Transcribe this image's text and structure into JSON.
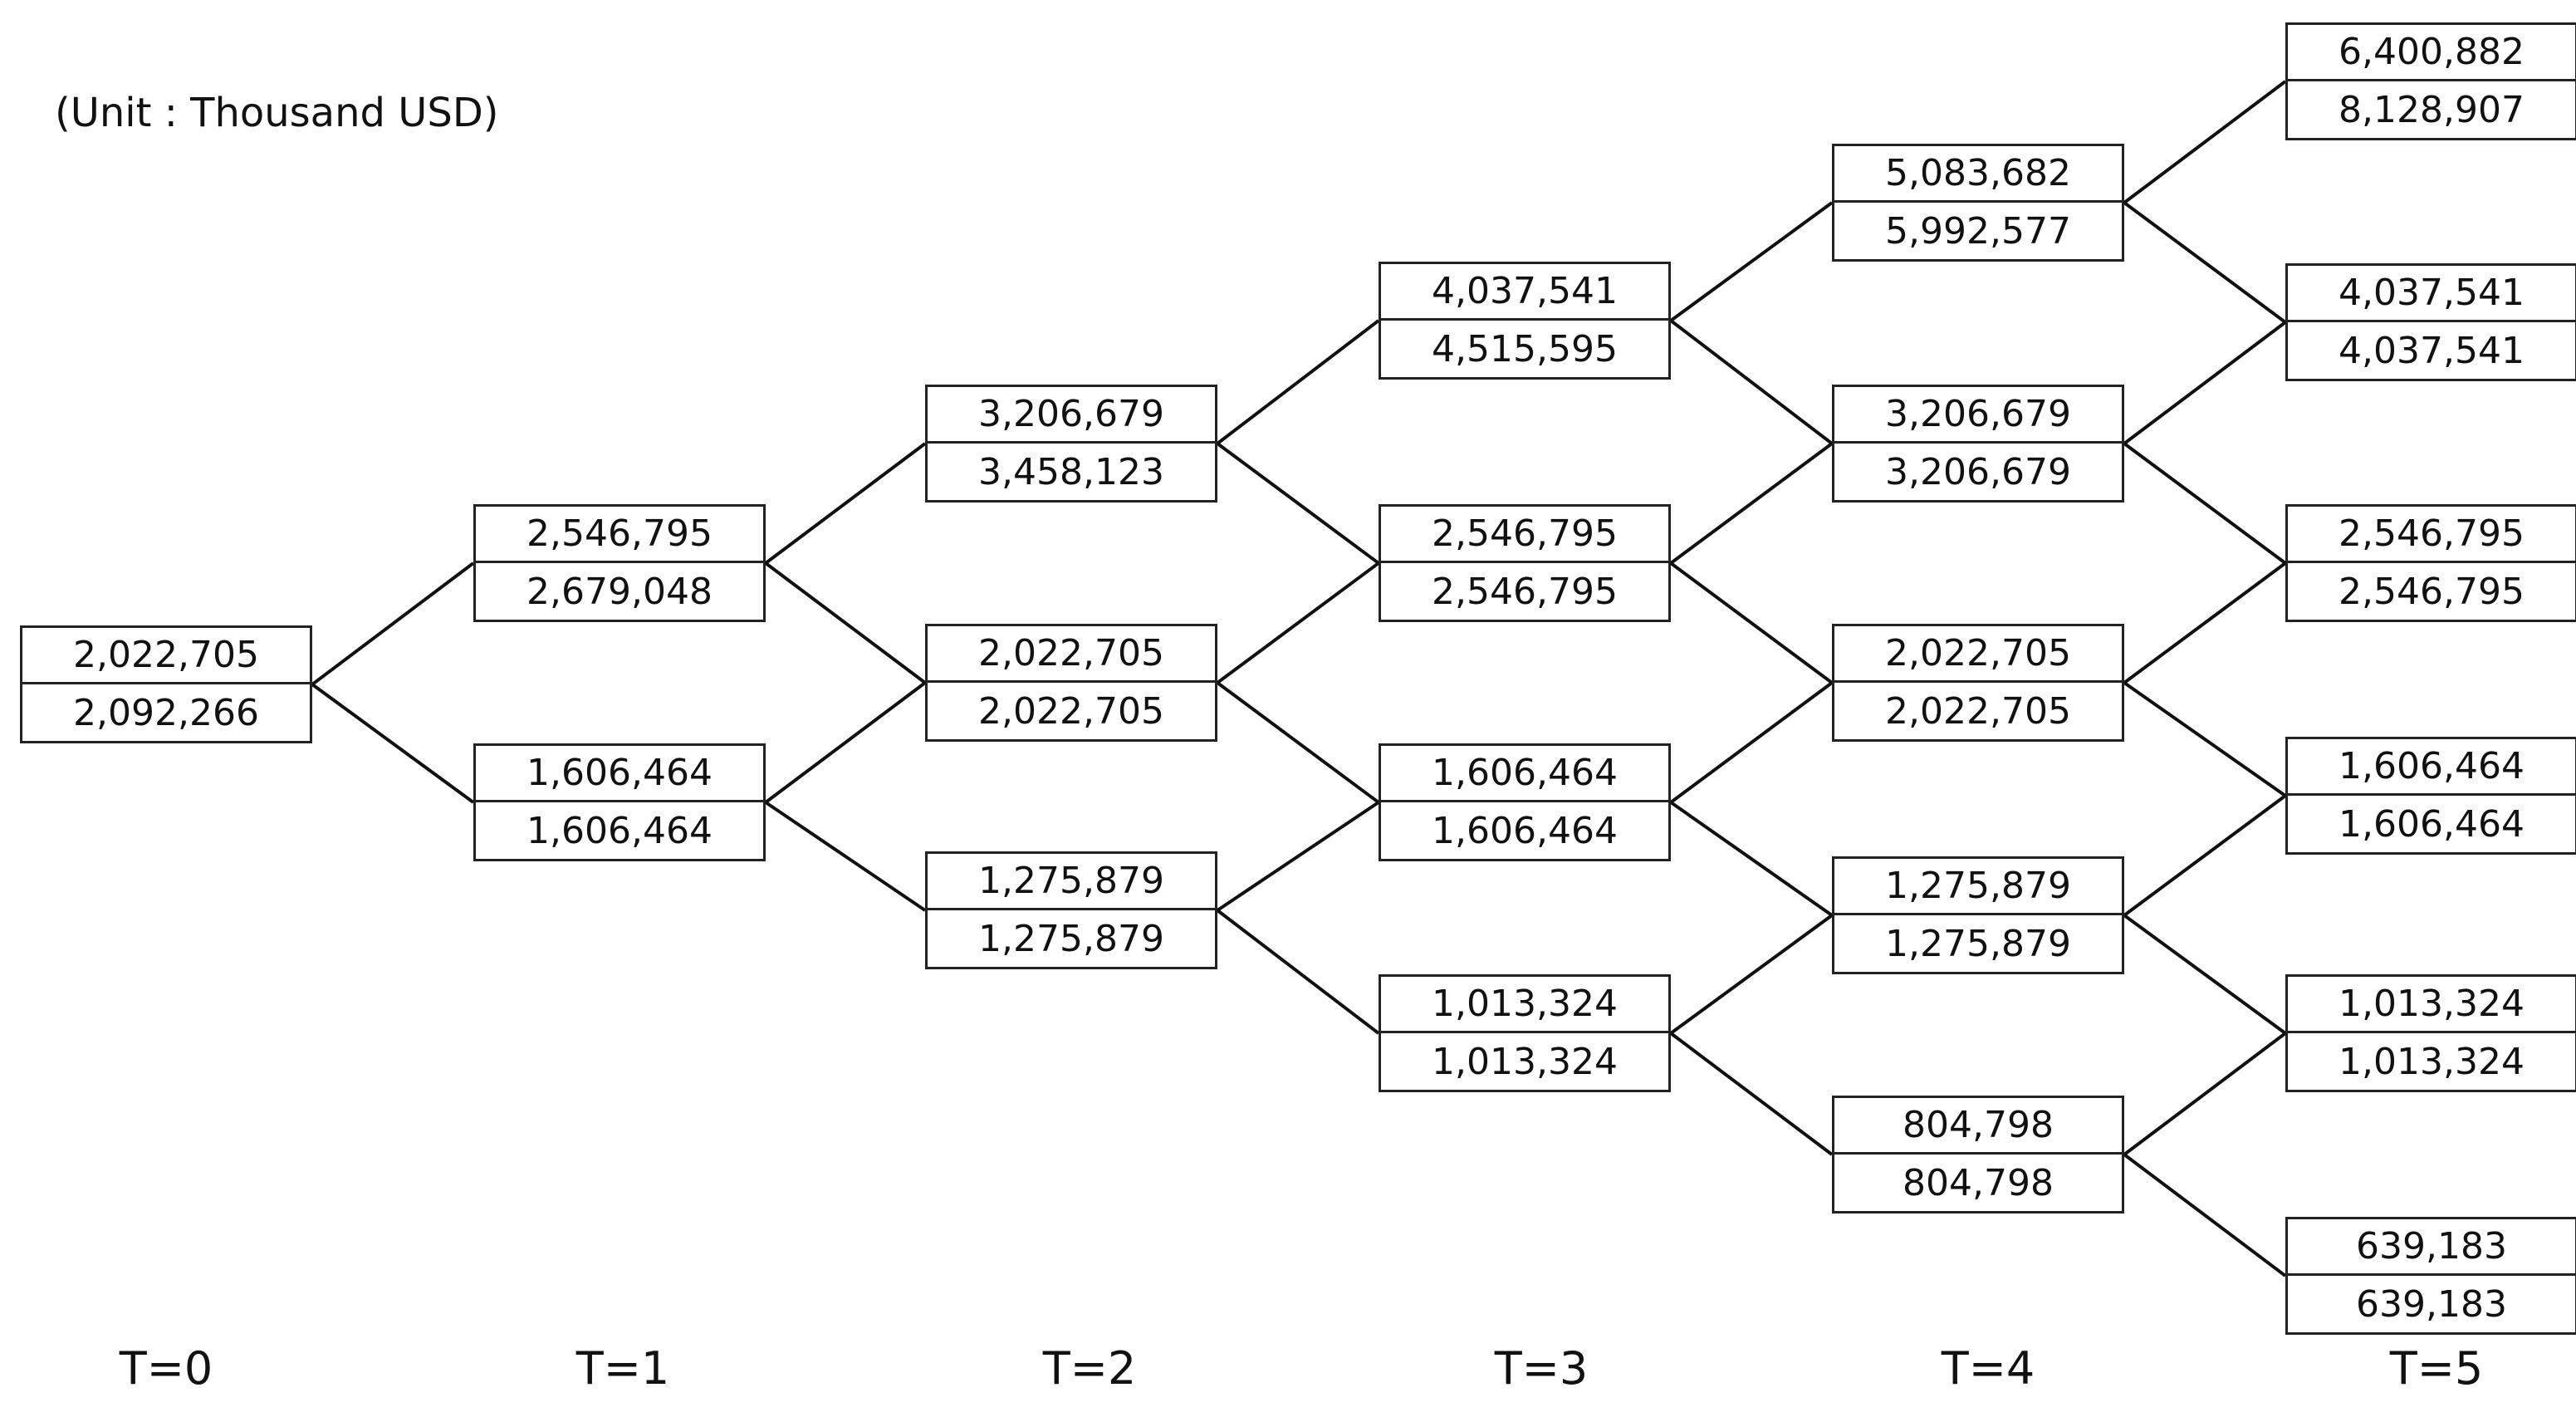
{
  "unit_label": "(Unit : Thousand USD)",
  "time_labels": [
    "T=0",
    "T=1",
    "T=2",
    "T=3",
    "T=4",
    "T=5"
  ],
  "tree": {
    "stages": [
      {
        "nodes": [
          {
            "top": "2,022,705",
            "bottom": "2,092,266"
          }
        ]
      },
      {
        "nodes": [
          {
            "top": "2,546,795",
            "bottom": "2,679,048"
          },
          {
            "top": "1,606,464",
            "bottom": "1,606,464"
          }
        ]
      },
      {
        "nodes": [
          {
            "top": "3,206,679",
            "bottom": "3,458,123"
          },
          {
            "top": "2,022,705",
            "bottom": "2,022,705"
          },
          {
            "top": "1,275,879",
            "bottom": "1,275,879"
          }
        ]
      },
      {
        "nodes": [
          {
            "top": "4,037,541",
            "bottom": "4,515,595"
          },
          {
            "top": "2,546,795",
            "bottom": "2,546,795"
          },
          {
            "top": "1,606,464",
            "bottom": "1,606,464"
          },
          {
            "top": "1,013,324",
            "bottom": "1,013,324"
          }
        ]
      },
      {
        "nodes": [
          {
            "top": "5,083,682",
            "bottom": "5,992,577"
          },
          {
            "top": "3,206,679",
            "bottom": "3,206,679"
          },
          {
            "top": "2,022,705",
            "bottom": "2,022,705"
          },
          {
            "top": "1,275,879",
            "bottom": "1,275,879"
          },
          {
            "top": "804,798",
            "bottom": "804,798"
          }
        ]
      },
      {
        "nodes": [
          {
            "top": "6,400,882",
            "bottom": "8,128,907"
          },
          {
            "top": "4,037,541",
            "bottom": "4,037,541"
          },
          {
            "top": "2,546,795",
            "bottom": "2,546,795"
          },
          {
            "top": "1,606,464",
            "bottom": "1,606,464"
          },
          {
            "top": "1,013,324",
            "bottom": "1,013,324"
          },
          {
            "top": "639,183",
            "bottom": "639,183"
          }
        ]
      }
    ]
  }
}
